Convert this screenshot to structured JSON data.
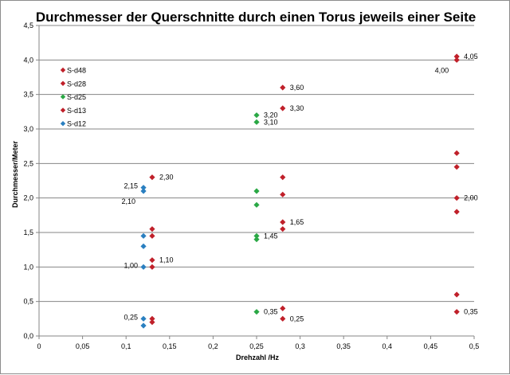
{
  "chart_data": {
    "type": "scatter",
    "title": "Durchmesser der Querschnitte durch einen Torus jeweils einer Seite",
    "xlabel": "Drehzahl /Hz",
    "ylabel": "Durchmesser/Meter",
    "xlim": [
      0,
      0.5
    ],
    "ylim": [
      0,
      4.5
    ],
    "x_ticks": [
      "0",
      "0,05",
      "0,1",
      "0,15",
      "0,2",
      "0,25",
      "0,3",
      "0,35",
      "0,4",
      "0,45",
      "0,5"
    ],
    "y_ticks": [
      "0,0",
      "0,5",
      "1,0",
      "1,5",
      "2,0",
      "2,5",
      "3,0",
      "3,5",
      "4,0",
      "4,5"
    ],
    "grid": "horizontal",
    "legend_position": "top-left",
    "series": [
      {
        "name": "S-d48",
        "color": "#c0202a",
        "points": [
          [
            0.48,
            4.05
          ],
          [
            0.48,
            4.0
          ],
          [
            0.48,
            2.65
          ],
          [
            0.48,
            2.45
          ],
          [
            0.48,
            2.0
          ],
          [
            0.48,
            1.8
          ],
          [
            0.48,
            0.6
          ],
          [
            0.48,
            0.35
          ]
        ]
      },
      {
        "name": "S-d28",
        "color": "#c0202a",
        "points": [
          [
            0.28,
            3.6
          ],
          [
            0.28,
            3.3
          ],
          [
            0.28,
            2.3
          ],
          [
            0.28,
            2.05
          ],
          [
            0.28,
            1.65
          ],
          [
            0.28,
            1.55
          ],
          [
            0.28,
            0.4
          ],
          [
            0.28,
            0.25
          ]
        ]
      },
      {
        "name": "S-d25",
        "color": "#2aa845",
        "points": [
          [
            0.25,
            3.2
          ],
          [
            0.25,
            3.1
          ],
          [
            0.25,
            2.1
          ],
          [
            0.25,
            1.9
          ],
          [
            0.25,
            1.45
          ],
          [
            0.25,
            1.4
          ],
          [
            0.25,
            0.35
          ]
        ]
      },
      {
        "name": "S-d13",
        "color": "#c0202a",
        "points": [
          [
            0.13,
            2.3
          ],
          [
            0.13,
            1.55
          ],
          [
            0.13,
            1.45
          ],
          [
            0.13,
            1.1
          ],
          [
            0.13,
            1.0
          ],
          [
            0.13,
            0.25
          ],
          [
            0.13,
            0.2
          ]
        ]
      },
      {
        "name": "S-d12",
        "color": "#2a7fc0",
        "points": [
          [
            0.12,
            2.15
          ],
          [
            0.12,
            2.1
          ],
          [
            0.12,
            1.45
          ],
          [
            0.12,
            1.3
          ],
          [
            0.12,
            1.0
          ],
          [
            0.12,
            0.25
          ],
          [
            0.12,
            0.15
          ]
        ]
      }
    ],
    "annotations": [
      {
        "text": "4,05",
        "x": 0.48,
        "y": 4.05,
        "side": "right"
      },
      {
        "text": "4,00",
        "x": 0.48,
        "y": 4.0,
        "side": "below-left"
      },
      {
        "text": "2,00",
        "x": 0.48,
        "y": 2.0,
        "side": "right"
      },
      {
        "text": "0,35",
        "x": 0.48,
        "y": 0.35,
        "side": "right"
      },
      {
        "text": "3,60",
        "x": 0.28,
        "y": 3.6,
        "side": "right"
      },
      {
        "text": "3,30",
        "x": 0.28,
        "y": 3.3,
        "side": "right"
      },
      {
        "text": "1,65",
        "x": 0.28,
        "y": 1.65,
        "side": "right"
      },
      {
        "text": "0,25",
        "x": 0.28,
        "y": 0.25,
        "side": "right"
      },
      {
        "text": "3,20",
        "x": 0.25,
        "y": 3.2,
        "side": "right"
      },
      {
        "text": "3,10",
        "x": 0.25,
        "y": 3.1,
        "side": "right"
      },
      {
        "text": "1,45",
        "x": 0.25,
        "y": 1.45,
        "side": "right"
      },
      {
        "text": "0,35",
        "x": 0.25,
        "y": 0.35,
        "side": "right"
      },
      {
        "text": "2,30",
        "x": 0.13,
        "y": 2.3,
        "side": "right"
      },
      {
        "text": "1,10",
        "x": 0.13,
        "y": 1.1,
        "side": "right"
      },
      {
        "text": "2,15",
        "x": 0.12,
        "y": 2.15,
        "side": "left"
      },
      {
        "text": "2,10",
        "x": 0.12,
        "y": 2.1,
        "side": "below-left"
      },
      {
        "text": "1,00",
        "x": 0.12,
        "y": 1.0,
        "side": "left"
      },
      {
        "text": "0,25",
        "x": 0.12,
        "y": 0.25,
        "side": "left"
      }
    ]
  }
}
